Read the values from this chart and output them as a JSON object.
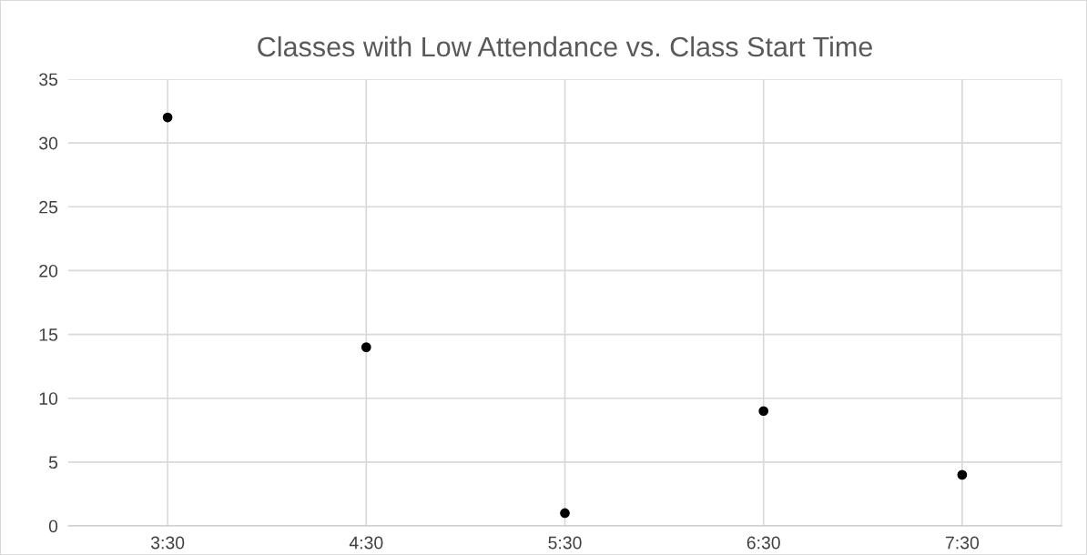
{
  "chart_data": {
    "type": "scatter",
    "title": "Classes with Low Attendance vs. Class Start Time",
    "categories": [
      "3:30",
      "4:30",
      "5:30",
      "6:30",
      "7:30"
    ],
    "series": [
      {
        "color": "#000000",
        "values": [
          32,
          14,
          1,
          9,
          4
        ]
      }
    ],
    "ylim": [
      0,
      35
    ],
    "yticks": [
      0,
      5,
      10,
      15,
      20,
      25,
      30,
      35
    ],
    "grid": true,
    "marker": "circle",
    "legend": false
  }
}
